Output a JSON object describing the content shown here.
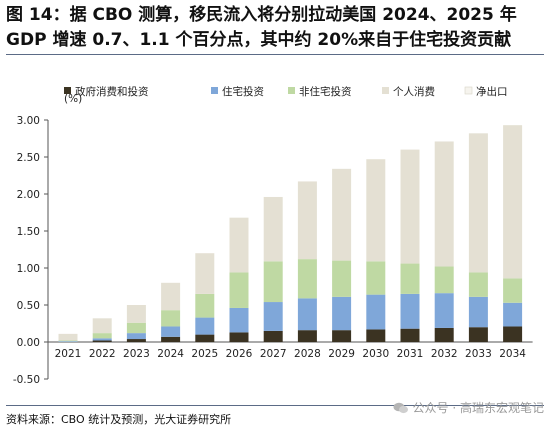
{
  "title": "图 14：据 CBO 测算，移民流入将分别拉动美国 2024、2025 年 GDP 增速 0.7、1.1 个百分点，其中约 20%来自于住宅投资贡献",
  "source": "资料来源：CBO 统计及预测，光大证券研究所",
  "watermark": "公众号 · 高瑞东宏观笔记",
  "chart_data": {
    "type": "bar",
    "stacked": true,
    "unit_label": "(%)",
    "categories": [
      "2021",
      "2022",
      "2023",
      "2024",
      "2025",
      "2026",
      "2027",
      "2028",
      "2029",
      "2030",
      "2031",
      "2032",
      "2033",
      "2034"
    ],
    "ylim": [
      -0.5,
      3.0
    ],
    "yticks": [
      "3.00",
      "2.50",
      "2.00",
      "1.50",
      "1.00",
      "0.50",
      "0.00",
      "-0.50"
    ],
    "legend_position": "top",
    "grid": false,
    "series": [
      {
        "name": "政府消费和投资",
        "color": "#3b3322",
        "values": [
          0.0,
          0.02,
          0.04,
          0.07,
          0.1,
          0.13,
          0.15,
          0.16,
          0.16,
          0.17,
          0.18,
          0.19,
          0.2,
          0.21
        ]
      },
      {
        "name": "住宅投资",
        "color": "#7fa7d9",
        "values": [
          0.01,
          0.03,
          0.08,
          0.14,
          0.23,
          0.33,
          0.39,
          0.43,
          0.45,
          0.47,
          0.47,
          0.47,
          0.41,
          0.32
        ]
      },
      {
        "name": "非住宅投资",
        "color": "#bfd9a3",
        "values": [
          0.01,
          0.07,
          0.14,
          0.22,
          0.32,
          0.48,
          0.55,
          0.53,
          0.49,
          0.45,
          0.41,
          0.36,
          0.33,
          0.33
        ]
      },
      {
        "name": "个人消费",
        "color": "#e4e0d3",
        "values": [
          0.09,
          0.2,
          0.24,
          0.37,
          0.55,
          0.74,
          0.87,
          1.05,
          1.24,
          1.38,
          1.54,
          1.69,
          1.88,
          2.07
        ]
      },
      {
        "name": "净出口",
        "color": "#f6f4ee",
        "values": [
          0,
          0,
          0,
          0,
          0,
          0,
          0,
          0,
          0,
          0,
          0,
          0,
          0,
          0
        ]
      }
    ]
  }
}
